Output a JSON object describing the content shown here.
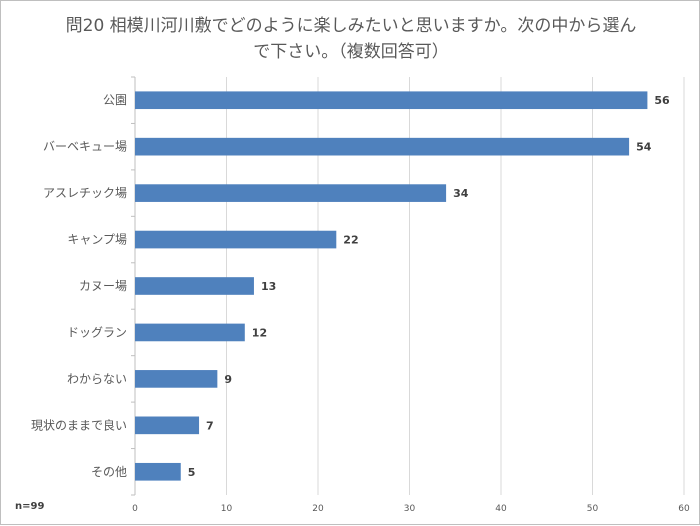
{
  "chart_data": {
    "type": "bar",
    "orientation": "horizontal",
    "title": "問20 相模川河川敷でどのように楽しみたいと思いますか。次の中から選んで下さい。（複数回答可）",
    "categories": [
      "公園",
      "バーベキュー場",
      "アスレチック場",
      "キャンプ場",
      "カヌー場",
      "ドッグラン",
      "わからない",
      "現状のままで良い",
      "その他"
    ],
    "values": [
      56,
      54,
      34,
      22,
      13,
      12,
      9,
      7,
      5
    ],
    "xlabel": "",
    "ylabel": "",
    "xlim": [
      0,
      60
    ],
    "x_ticks": [
      "0",
      "10",
      "20",
      "30",
      "40",
      "50",
      "60"
    ],
    "grid": true,
    "legend": "none",
    "bar_color": "#4f81bd",
    "note": "n=99"
  }
}
